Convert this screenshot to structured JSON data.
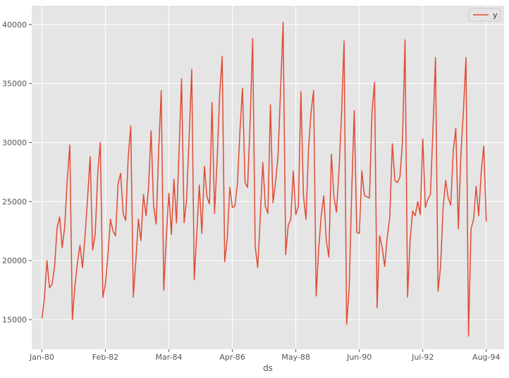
{
  "chart_data": {
    "type": "line",
    "title": "",
    "xlabel": "ds",
    "ylabel": "",
    "x_tick_labels": [
      "Jan-80",
      "Feb-82",
      "Mar-84",
      "Apr-86",
      "May-88",
      "Jun-90",
      "Jul-92",
      "Aug-94"
    ],
    "y_ticks": [
      15000,
      20000,
      25000,
      30000,
      35000,
      40000
    ],
    "y_tick_labels": [
      "15000",
      "20000",
      "25000",
      "30000",
      "35000",
      "40000"
    ],
    "xlim": [
      "1979-09",
      "1995-03"
    ],
    "ylim": [
      12500,
      41600
    ],
    "grid": true,
    "legend": "top-right",
    "start_month": "1980-01",
    "series": [
      {
        "name": "y",
        "color": "#e24a33",
        "values": [
          15100,
          16800,
          20000,
          17700,
          18000,
          19500,
          22800,
          23700,
          21100,
          22900,
          26900,
          29800,
          15000,
          17800,
          19800,
          21300,
          19400,
          22100,
          25300,
          28800,
          20900,
          22200,
          27400,
          30000,
          16900,
          18000,
          20400,
          23500,
          22500,
          22100,
          26500,
          27400,
          24000,
          23400,
          28800,
          31400,
          16900,
          20000,
          23500,
          21700,
          25600,
          23800,
          26200,
          31000,
          24600,
          23100,
          29400,
          34400,
          17500,
          22000,
          25700,
          22200,
          26900,
          23200,
          29100,
          35400,
          23200,
          25200,
          30500,
          36200,
          18400,
          22300,
          26400,
          22300,
          28000,
          25400,
          24800,
          33400,
          24000,
          28500,
          34000,
          37300,
          19900,
          21900,
          26200,
          24500,
          24600,
          26500,
          31000,
          34600,
          26600,
          26200,
          31700,
          38800,
          21200,
          19400,
          23700,
          28300,
          24600,
          24000,
          33200,
          24900,
          26600,
          28900,
          34500,
          40200,
          20500,
          23000,
          23500,
          27600,
          23900,
          24600,
          34300,
          25500,
          23500,
          29400,
          32600,
          34400,
          17000,
          21000,
          23800,
          25500,
          21700,
          20300,
          29000,
          25400,
          24100,
          27600,
          32400,
          38600,
          14600,
          17600,
          25800,
          32700,
          22400,
          22300,
          27600,
          25500,
          25400,
          25300,
          32600,
          35100,
          16000,
          22100,
          21100,
          19500,
          22000,
          23700,
          29900,
          26800,
          26600,
          27100,
          30100,
          38700,
          16900,
          21700,
          24200,
          23800,
          25000,
          23900,
          30300,
          24500,
          25200,
          25600,
          31100,
          37200,
          17400,
          19500,
          24500,
          26800,
          25300,
          24700,
          29300,
          31200,
          22700,
          29000,
          32700,
          37200,
          13600,
          22700,
          23500,
          26300,
          23800,
          27500,
          29700,
          23300
        ]
      }
    ]
  }
}
